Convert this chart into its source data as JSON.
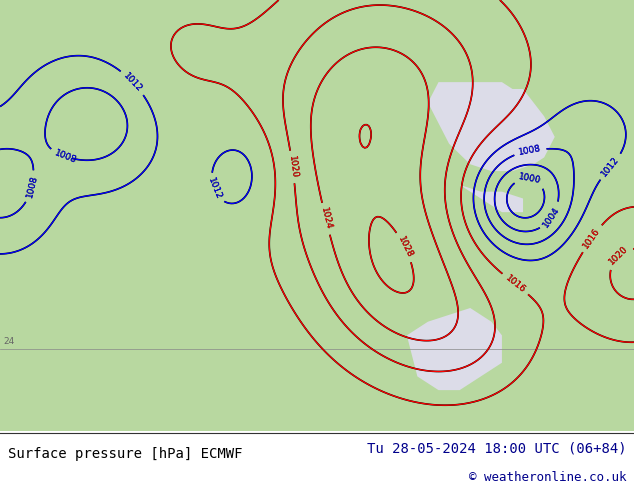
{
  "title_left": "Surface pressure [hPa] ECMWF",
  "title_right": "Tu 28-05-2024 18:00 UTC (06+84)",
  "copyright": "© weatheronline.co.uk",
  "bg_color": "#dcdce8",
  "land_color": "#b8d8a0",
  "ocean_color": "#dcdce8",
  "title_color": "#00008b",
  "copyright_color": "#00008b",
  "footer_bg": "#ffffff",
  "figsize": [
    6.34,
    4.9
  ],
  "dpi": 100,
  "lon_min": -175,
  "lon_max": -55,
  "lat_min": 12,
  "lat_max": 75
}
